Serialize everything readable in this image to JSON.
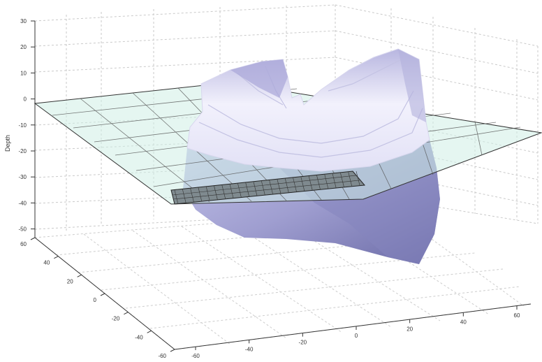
{
  "chart_data": {
    "type": "surface3d",
    "zlabel": "Depth",
    "xlabel": "",
    "ylabel": "",
    "title": "",
    "x_ticks": [
      -60,
      -40,
      -20,
      0,
      20,
      40,
      60
    ],
    "y_ticks": [
      -60,
      -40,
      -20,
      0,
      20,
      40,
      60
    ],
    "z_ticks": [
      30,
      20,
      10,
      0,
      -10,
      -20,
      -30,
      -40,
      -50
    ],
    "xlim": [
      -60,
      60
    ],
    "ylim": [
      -60,
      60
    ],
    "zlim": [
      -55,
      30
    ],
    "grid": true,
    "plane_depth": 0,
    "colors": {
      "surface_top": "#e4e2f8",
      "surface_mid": "#b9b7e2",
      "surface_dark": "#7b7ab3",
      "plane_fill": "#cfeee6",
      "grid": "#c8c8c8",
      "axis": "#333333"
    },
    "layers": [
      "3d-surface",
      "translucent-plane",
      "grating-patch"
    ]
  }
}
